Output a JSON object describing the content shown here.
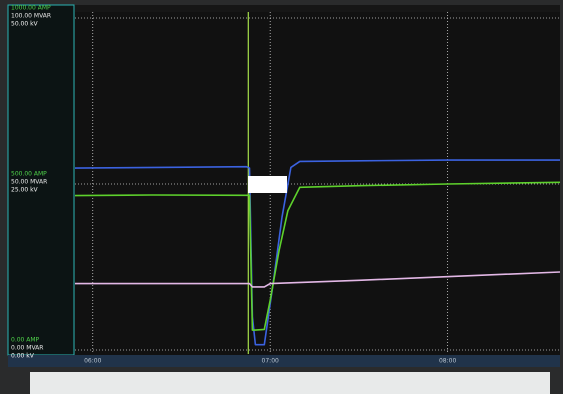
{
  "chart_data": {
    "type": "line",
    "xlim": [
      354,
      518
    ],
    "xticks": [
      {
        "value": 360,
        "label": "06:00"
      },
      {
        "value": 420,
        "label": "07:00"
      },
      {
        "value": 480,
        "label": "08:00"
      }
    ],
    "scales": [
      {
        "color": "#4fd34a",
        "ylim": [
          0,
          1000
        ],
        "yticks": [
          {
            "value": 0,
            "label": "0.00 AMP"
          },
          {
            "value": 500,
            "label": "500.00 AMP"
          },
          {
            "value": 1000,
            "label": "1000.00 AMP"
          }
        ]
      },
      {
        "color": "#e8e8e8",
        "ylim": [
          0,
          100
        ],
        "yticks": [
          {
            "value": 0,
            "label": "0.00 MVAR"
          },
          {
            "value": 50,
            "label": "50.00 MVAR"
          },
          {
            "value": 100,
            "label": "100.00 MVAR"
          }
        ]
      },
      {
        "color": "#f2f2f2",
        "ylim": [
          0,
          50
        ],
        "yticks": [
          {
            "value": 0,
            "label": "0.00 kV"
          },
          {
            "value": 25,
            "label": "25.00 kV"
          },
          {
            "value": 50,
            "label": "50.00 kV"
          }
        ]
      }
    ],
    "grid": true,
    "cursor": 412.6,
    "series": [
      {
        "scale": 2,
        "color": "#3b62e0",
        "x": [
          354,
          412,
          413,
          414,
          415,
          418,
          421,
          424,
          427,
          430,
          450,
          480,
          518
        ],
        "values": [
          27.4,
          27.6,
          27.4,
          5,
          0.8,
          0.8,
          10,
          20,
          27.5,
          28.4,
          28.5,
          28.6,
          28.6
        ]
      },
      {
        "scale": 0,
        "color": "#5ed12c",
        "x": [
          354,
          380,
          413,
          414,
          415,
          418,
          420,
          423,
          426,
          430,
          450,
          480,
          518
        ],
        "values": [
          465,
          467,
          466,
          60,
          60,
          62,
          150,
          300,
          420,
          490,
          495,
          500,
          505
        ]
      },
      {
        "scale": 1,
        "color": "#e3b8e6",
        "x": [
          354,
          413,
          414,
          418,
          420,
          450,
          518
        ],
        "values": [
          20,
          20,
          19,
          19,
          20,
          21,
          23.5
        ]
      }
    ]
  }
}
